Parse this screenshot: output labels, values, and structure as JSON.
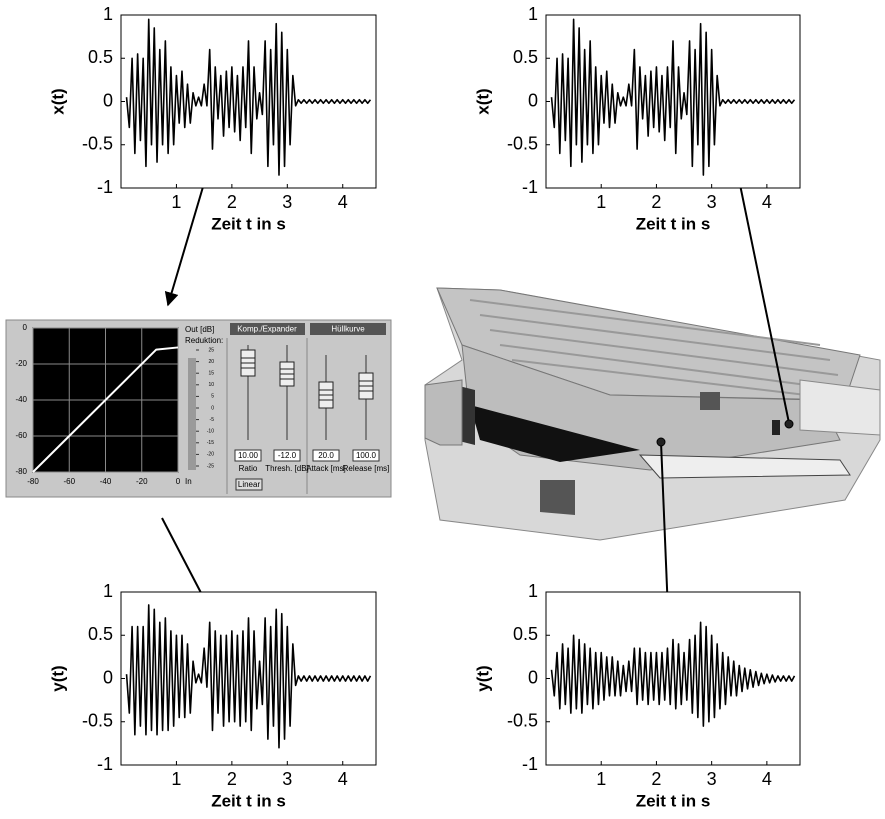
{
  "chart_data": [
    {
      "type": "line",
      "ylabel": "x(t)",
      "xlabel": "Zeit t in s",
      "color": "#000000",
      "x": [
        0.1,
        0.15,
        0.2,
        0.25,
        0.3,
        0.35,
        0.4,
        0.45,
        0.5,
        0.55,
        0.6,
        0.65,
        0.7,
        0.75,
        0.8,
        0.85,
        0.9,
        0.95,
        1,
        1.05,
        1.1,
        1.15,
        1.2,
        1.25,
        1.3,
        1.35,
        1.4,
        1.45,
        1.5,
        1.55,
        1.6,
        1.65,
        1.7,
        1.75,
        1.8,
        1.85,
        1.9,
        1.95,
        2,
        2.05,
        2.1,
        2.15,
        2.2,
        2.25,
        2.3,
        2.35,
        2.4,
        2.45,
        2.5,
        2.55,
        2.6,
        2.65,
        2.7,
        2.75,
        2.8,
        2.85,
        2.9,
        2.95,
        3,
        3.05,
        3.1,
        3.15,
        3.2,
        3.25,
        3.3,
        3.35,
        3.4,
        3.45,
        3.5,
        3.55,
        3.6,
        3.65,
        3.7,
        3.75,
        3.8,
        3.85,
        3.9,
        3.95,
        4,
        4.05,
        4.1,
        4.15,
        4.2,
        4.25,
        4.3,
        4.35,
        4.4,
        4.45,
        4.5
      ],
      "values": [
        0.05,
        -0.3,
        0.5,
        -0.6,
        0.55,
        -0.45,
        0.5,
        -0.75,
        0.95,
        -0.5,
        0.85,
        -0.7,
        0.6,
        -0.5,
        0.7,
        -0.6,
        0.4,
        -0.5,
        0.3,
        -0.25,
        0.35,
        -0.3,
        0.2,
        -0.25,
        0.1,
        -0.05,
        0.05,
        -0.05,
        0.2,
        -0.05,
        0.6,
        -0.55,
        0.4,
        -0.2,
        0.3,
        -0.4,
        0.35,
        -0.3,
        0.4,
        -0.35,
        0.3,
        -0.45,
        0.4,
        -0.3,
        0.7,
        -0.6,
        0.4,
        -0.2,
        0.1,
        -0.15,
        0.7,
        -0.75,
        0.6,
        -0.5,
        0.9,
        -0.85,
        0.8,
        -0.75,
        0.6,
        -0.5,
        0.3,
        -0.05,
        0.02,
        -0.02,
        0.02,
        -0.02,
        0.02,
        -0.02,
        0.02,
        -0.02,
        0.02,
        -0.02,
        0.02,
        -0.02,
        0.02,
        -0.02,
        0.02,
        -0.02,
        0.02,
        -0.02,
        0.02,
        -0.02,
        0.02,
        -0.02,
        0.02,
        -0.02,
        0.02,
        -0.02,
        0.02
      ],
      "xlim": [
        0,
        4.6
      ],
      "ylim": [
        -1,
        1
      ],
      "xticks": [
        1,
        2,
        3,
        4
      ],
      "yticks": [
        -1,
        -0.5,
        0,
        0.5,
        1
      ]
    },
    {
      "type": "line",
      "ylabel": "x(t)",
      "xlabel": "Zeit t in s",
      "color": "#000000",
      "x": [
        0.1,
        0.15,
        0.2,
        0.25,
        0.3,
        0.35,
        0.4,
        0.45,
        0.5,
        0.55,
        0.6,
        0.65,
        0.7,
        0.75,
        0.8,
        0.85,
        0.9,
        0.95,
        1,
        1.05,
        1.1,
        1.15,
        1.2,
        1.25,
        1.3,
        1.35,
        1.4,
        1.45,
        1.5,
        1.55,
        1.6,
        1.65,
        1.7,
        1.75,
        1.8,
        1.85,
        1.9,
        1.95,
        2,
        2.05,
        2.1,
        2.15,
        2.2,
        2.25,
        2.3,
        2.35,
        2.4,
        2.45,
        2.5,
        2.55,
        2.6,
        2.65,
        2.7,
        2.75,
        2.8,
        2.85,
        2.9,
        2.95,
        3,
        3.05,
        3.1,
        3.15,
        3.2,
        3.25,
        3.3,
        3.35,
        3.4,
        3.45,
        3.5,
        3.55,
        3.6,
        3.65,
        3.7,
        3.75,
        3.8,
        3.85,
        3.9,
        3.95,
        4,
        4.05,
        4.1,
        4.15,
        4.2,
        4.25,
        4.3,
        4.35,
        4.4,
        4.45,
        4.5
      ],
      "values": [
        0.05,
        -0.3,
        0.5,
        -0.6,
        0.55,
        -0.45,
        0.5,
        -0.75,
        0.95,
        -0.5,
        0.85,
        -0.7,
        0.6,
        -0.5,
        0.7,
        -0.6,
        0.4,
        -0.5,
        0.3,
        -0.25,
        0.35,
        -0.3,
        0.2,
        -0.25,
        0.1,
        -0.05,
        0.05,
        -0.05,
        0.2,
        -0.05,
        0.6,
        -0.55,
        0.4,
        -0.2,
        0.3,
        -0.4,
        0.35,
        -0.3,
        0.4,
        -0.35,
        0.3,
        -0.45,
        0.4,
        -0.3,
        0.7,
        -0.6,
        0.4,
        -0.2,
        0.1,
        -0.15,
        0.7,
        -0.75,
        0.6,
        -0.5,
        0.9,
        -0.85,
        0.8,
        -0.75,
        0.6,
        -0.5,
        0.3,
        -0.05,
        0.02,
        -0.02,
        0.02,
        -0.02,
        0.02,
        -0.02,
        0.02,
        -0.02,
        0.02,
        -0.02,
        0.02,
        -0.02,
        0.02,
        -0.02,
        0.02,
        -0.02,
        0.02,
        -0.02,
        0.02,
        -0.02,
        0.02,
        -0.02,
        0.02,
        -0.02,
        0.02,
        -0.02,
        0.02
      ],
      "xlim": [
        0,
        4.6
      ],
      "ylim": [
        -1,
        1
      ],
      "xticks": [
        1,
        2,
        3,
        4
      ],
      "yticks": [
        -1,
        -0.5,
        0,
        0.5,
        1
      ]
    },
    {
      "type": "line",
      "ylabel": "y(t)",
      "xlabel": "Zeit t in s",
      "color": "#000000",
      "x": [
        0.1,
        0.15,
        0.2,
        0.25,
        0.3,
        0.35,
        0.4,
        0.45,
        0.5,
        0.55,
        0.6,
        0.65,
        0.7,
        0.75,
        0.8,
        0.85,
        0.9,
        0.95,
        1,
        1.05,
        1.1,
        1.15,
        1.2,
        1.25,
        1.3,
        1.35,
        1.4,
        1.45,
        1.5,
        1.55,
        1.6,
        1.65,
        1.7,
        1.75,
        1.8,
        1.85,
        1.9,
        1.95,
        2,
        2.05,
        2.1,
        2.15,
        2.2,
        2.25,
        2.3,
        2.35,
        2.4,
        2.45,
        2.5,
        2.55,
        2.6,
        2.65,
        2.7,
        2.75,
        2.8,
        2.85,
        2.9,
        2.95,
        3,
        3.05,
        3.1,
        3.15,
        3.2,
        3.25,
        3.3,
        3.35,
        3.4,
        3.45,
        3.5,
        3.55,
        3.6,
        3.65,
        3.7,
        3.75,
        3.8,
        3.85,
        3.9,
        3.95,
        4,
        4.05,
        4.1,
        4.15,
        4.2,
        4.25,
        4.3,
        4.35,
        4.4,
        4.45,
        4.5
      ],
      "values": [
        0.05,
        -0.4,
        0.6,
        -0.65,
        0.6,
        -0.55,
        0.6,
        -0.65,
        0.85,
        -0.6,
        0.8,
        -0.65,
        0.65,
        -0.6,
        0.7,
        -0.6,
        0.55,
        -0.55,
        0.5,
        -0.45,
        0.5,
        -0.45,
        0.4,
        -0.4,
        0.2,
        -0.05,
        0.05,
        -0.05,
        0.35,
        -0.1,
        0.65,
        -0.6,
        0.55,
        -0.4,
        0.5,
        -0.55,
        0.5,
        -0.5,
        0.55,
        -0.5,
        0.5,
        -0.55,
        0.55,
        -0.5,
        0.7,
        -0.6,
        0.55,
        -0.35,
        0.2,
        -0.3,
        0.7,
        -0.7,
        0.6,
        -0.55,
        0.8,
        -0.8,
        0.75,
        -0.7,
        0.6,
        -0.55,
        0.4,
        -0.08,
        0.03,
        -0.03,
        0.03,
        -0.03,
        0.03,
        -0.03,
        0.03,
        -0.03,
        0.03,
        -0.03,
        0.03,
        -0.03,
        0.03,
        -0.03,
        0.03,
        -0.03,
        0.03,
        -0.03,
        0.03,
        -0.03,
        0.03,
        -0.03,
        0.03,
        -0.03,
        0.03,
        -0.03,
        0.03
      ],
      "xlim": [
        0,
        4.6
      ],
      "ylim": [
        -1,
        1
      ],
      "xticks": [
        1,
        2,
        3,
        4
      ],
      "yticks": [
        -1,
        -0.5,
        0,
        0.5,
        1
      ]
    },
    {
      "type": "line",
      "ylabel": "y(t)",
      "xlabel": "Zeit t in s",
      "color": "#000000",
      "x": [
        0.1,
        0.15,
        0.2,
        0.25,
        0.3,
        0.35,
        0.4,
        0.45,
        0.5,
        0.55,
        0.6,
        0.65,
        0.7,
        0.75,
        0.8,
        0.85,
        0.9,
        0.95,
        1,
        1.05,
        1.1,
        1.15,
        1.2,
        1.25,
        1.3,
        1.35,
        1.4,
        1.45,
        1.5,
        1.55,
        1.6,
        1.65,
        1.7,
        1.75,
        1.8,
        1.85,
        1.9,
        1.95,
        2,
        2.05,
        2.1,
        2.15,
        2.2,
        2.25,
        2.3,
        2.35,
        2.4,
        2.45,
        2.5,
        2.55,
        2.6,
        2.65,
        2.7,
        2.75,
        2.8,
        2.85,
        2.9,
        2.95,
        3,
        3.05,
        3.1,
        3.15,
        3.2,
        3.25,
        3.3,
        3.35,
        3.4,
        3.45,
        3.5,
        3.55,
        3.6,
        3.65,
        3.7,
        3.75,
        3.8,
        3.85,
        3.9,
        3.95,
        4,
        4.05,
        4.1,
        4.15,
        4.2,
        4.25,
        4.3,
        4.35,
        4.4,
        4.45,
        4.5
      ],
      "values": [
        0.1,
        -0.2,
        0.3,
        -0.35,
        0.4,
        -0.3,
        0.35,
        -0.4,
        0.5,
        -0.35,
        0.45,
        -0.4,
        0.4,
        -0.3,
        0.35,
        -0.35,
        0.3,
        -0.3,
        0.3,
        -0.25,
        0.25,
        -0.2,
        0.25,
        -0.2,
        0.2,
        -0.2,
        0.15,
        -0.15,
        0.2,
        -0.15,
        0.35,
        -0.3,
        0.35,
        -0.25,
        0.3,
        -0.3,
        0.3,
        -0.25,
        0.3,
        -0.3,
        0.3,
        -0.25,
        0.35,
        -0.3,
        0.45,
        -0.35,
        0.4,
        -0.3,
        0.3,
        -0.25,
        0.45,
        -0.4,
        0.5,
        -0.45,
        0.65,
        -0.55,
        0.6,
        -0.5,
        0.5,
        -0.45,
        0.4,
        -0.35,
        0.3,
        -0.3,
        0.25,
        -0.2,
        0.2,
        -0.2,
        0.15,
        -0.15,
        0.12,
        -0.12,
        0.1,
        -0.1,
        0.08,
        -0.08,
        0.06,
        -0.06,
        0.05,
        -0.05,
        0.04,
        -0.04,
        0.03,
        -0.03,
        0.03,
        -0.03,
        0.03,
        -0.03,
        0.03
      ],
      "xlim": [
        0,
        4.6
      ],
      "ylim": [
        -1,
        1
      ],
      "xticks": [
        1,
        2,
        3,
        4
      ],
      "yticks": [
        -1,
        -0.5,
        0,
        0.5,
        1
      ]
    },
    {
      "type": "line",
      "color": "#ffffff",
      "plot_background": "#000000",
      "grid": true,
      "x": [
        -80,
        -12,
        0
      ],
      "values": [
        -80,
        -12,
        -10.8
      ],
      "xlim": [
        -80,
        0
      ],
      "ylim": [
        -80,
        0
      ],
      "xticks": [
        -80,
        -60,
        -40,
        -20,
        0
      ],
      "yticks": [
        -80,
        -60,
        -40,
        -20,
        0
      ],
      "out_label": "Out [dB]",
      "in_label": "In",
      "meter_label": "Reduktion:",
      "meter_lim": [
        -25,
        25
      ],
      "meter_ticks": [
        25,
        20,
        15,
        10,
        5,
        0,
        -5,
        -10,
        -15,
        -20,
        -25
      ]
    }
  ],
  "panel": {
    "sections": [
      "Komp./Expander",
      "Hüllkurve"
    ],
    "controls": [
      {
        "value": "10.00",
        "label": "Ratio"
      },
      {
        "value": "-12.0",
        "label": "Thresh. [dB]"
      },
      {
        "value": "20.0",
        "label": "Attack [ms]"
      },
      {
        "value": "100.0",
        "label": "Release [ms]"
      }
    ],
    "button": "Linear"
  }
}
